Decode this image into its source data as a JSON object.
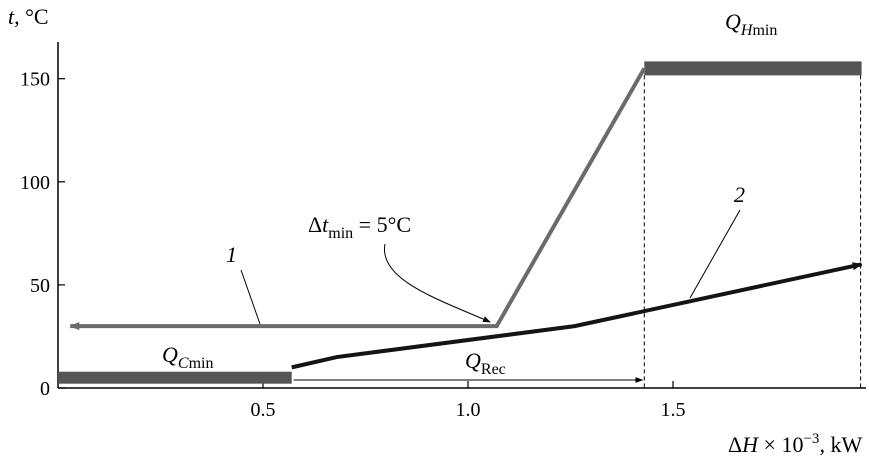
{
  "chart_data": {
    "type": "line",
    "title": "",
    "xlabel": {
      "prefix": "Δ",
      "var": "H",
      "mid": " × 10",
      "exp": "−3",
      "suffix": ", kW"
    },
    "ylabel": {
      "var": "t",
      "suffix": ", °C"
    },
    "xlim": [
      0,
      1.95
    ],
    "ylim": [
      0,
      165
    ],
    "xticks": [
      0.5,
      1.0,
      1.5
    ],
    "xtick_labels": [
      "0.5",
      "1.0",
      "1.5"
    ],
    "yticks": [
      0,
      50,
      100,
      150
    ],
    "ytick_labels": [
      "0",
      "50",
      "100",
      "150"
    ],
    "grid": false,
    "colors": {
      "hot": "#6b6b6b",
      "cold": "#141414",
      "bar": "#555555",
      "axis": "#000000"
    },
    "series": [
      {
        "id": "1",
        "label": "1",
        "color": "#6b6b6b",
        "points": [
          [
            1.43,
            155
          ],
          [
            1.07,
            30
          ],
          [
            0.03,
            30
          ]
        ],
        "arrow_end": "head"
      },
      {
        "id": "2",
        "label": "2",
        "color": "#141414",
        "points": [
          [
            0.57,
            10
          ],
          [
            0.68,
            15
          ],
          [
            1.26,
            30
          ],
          [
            1.96,
            60
          ]
        ],
        "arrow_end": "head"
      }
    ],
    "annotations": {
      "q_hmin": {
        "sym": "Q",
        "sub_it": "H",
        "sub": "min",
        "x_range": [
          1.43,
          1.96
        ],
        "y": 155
      },
      "q_cmin": {
        "sym": "Q",
        "sub_it": "C",
        "sub": "min",
        "x_range": [
          0,
          0.57
        ],
        "y": 5
      },
      "q_rec": {
        "sym": "Q",
        "sub": "Rec",
        "x_range": [
          0.57,
          1.43
        ],
        "y": 5
      },
      "dt_min": {
        "sym": "Δ",
        "var": "t",
        "sub": "min",
        "rest": " = 5°C",
        "point": [
          1.07,
          27
        ]
      }
    }
  }
}
